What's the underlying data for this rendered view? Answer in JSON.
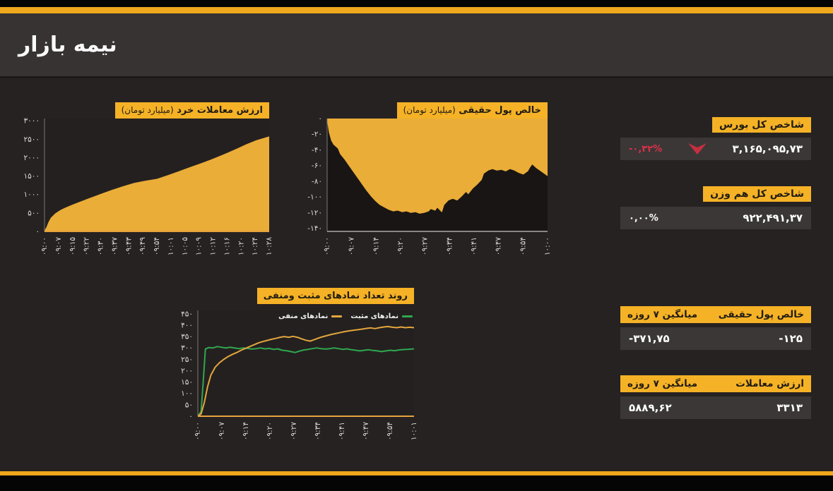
{
  "page": {
    "title": "نیمه بازار"
  },
  "colors": {
    "accent_stripe": "#F0A81C",
    "badge_yellow": "#F5B226",
    "chart_yellow": "#EAAD38",
    "positive_green": "#2FA84F",
    "negative_red": "#C62F3F",
    "card_bar_bg": "#3B3737",
    "header_bg": "#373332",
    "page_bg": "#262222"
  },
  "chart_data": [
    {
      "type": "area",
      "title": "ارزش معاملات خرد",
      "unit": "(میلیارد تومان)",
      "ylim": [
        0,
        3060
      ],
      "plot_bg": "#242020",
      "axis_color": "#E8A33D",
      "yticks": [
        {
          "v": 0,
          "label": "۰"
        },
        {
          "v": 500,
          "label": "۵۰۰"
        },
        {
          "v": 1000,
          "label": "۱۰۰۰"
        },
        {
          "v": 1500,
          "label": "۱۵۰۰"
        },
        {
          "v": 2000,
          "label": "۲۰۰۰"
        },
        {
          "v": 2500,
          "label": "۲۵۰۰"
        },
        {
          "v": 3000,
          "label": "۳۰۰۰"
        }
      ],
      "xticks": [
        "۰۹:۰۰",
        "۰۹:۰۷",
        "۰۹:۱۵",
        "۰۹:۲۲",
        "۰۹:۳۰",
        "۰۹:۳۷",
        "۰۹:۴۳",
        "۰۹:۴۹",
        "۰۹:۵۴",
        "۱۰:۰۱",
        "۱۰:۰۵",
        "۱۰:۰۹",
        "۱۰:۱۲",
        "۱۰:۱۶",
        "۱۰:۲۰",
        "۱۰:۲۴",
        "۱۰:۲۸"
      ],
      "series": [
        {
          "name": "ارزش معاملات خرد",
          "color": "#EAAD38",
          "width": 1.5,
          "fill": true,
          "points": [
            [
              0,
              0
            ],
            [
              0.01,
              100
            ],
            [
              0.02,
              250
            ],
            [
              0.03,
              360
            ],
            [
              0.05,
              480
            ],
            [
              0.07,
              560
            ],
            [
              0.09,
              620
            ],
            [
              0.12,
              700
            ],
            [
              0.15,
              770
            ],
            [
              0.18,
              840
            ],
            [
              0.21,
              910
            ],
            [
              0.25,
              1000
            ],
            [
              0.3,
              1110
            ],
            [
              0.35,
              1210
            ],
            [
              0.4,
              1300
            ],
            [
              0.45,
              1360
            ],
            [
              0.5,
              1410
            ],
            [
              0.55,
              1510
            ],
            [
              0.6,
              1620
            ],
            [
              0.65,
              1730
            ],
            [
              0.7,
              1840
            ],
            [
              0.74,
              1930
            ],
            [
              0.78,
              2030
            ],
            [
              0.82,
              2130
            ],
            [
              0.86,
              2240
            ],
            [
              0.9,
              2350
            ],
            [
              0.94,
              2450
            ],
            [
              1,
              2560
            ]
          ]
        }
      ]
    },
    {
      "type": "area",
      "title": "خالص پول حقیقی",
      "unit": "(میلیارد تومان)",
      "ylim": [
        -144,
        0
      ],
      "plot_bg": "#191515",
      "axis_color": "#8a8681",
      "yticks": [
        {
          "v": 0,
          "label": "۰"
        },
        {
          "v": -20,
          "label": "-۲۰"
        },
        {
          "v": -40,
          "label": "-۴۰"
        },
        {
          "v": -60,
          "label": "-۶۰"
        },
        {
          "v": -80,
          "label": "-۸۰"
        },
        {
          "v": -100,
          "label": "-۱۰۰"
        },
        {
          "v": -120,
          "label": "-۱۲۰"
        },
        {
          "v": -140,
          "label": "-۱۴۰"
        }
      ],
      "xticks": [
        "۰۹:۰۰",
        "۰۹:۰۷",
        "۰۹:۱۴",
        "۰۹:۲۰",
        "۰۹:۲۷",
        "۰۹:۳۴",
        "۰۹:۴۱",
        "۰۹:۴۷",
        "۰۹:۵۴",
        "۱۰:۰۰"
      ],
      "series": [
        {
          "name": "خالص پول حقیقی",
          "color": "#EAAD38",
          "width": 1,
          "fill": true,
          "points": [
            [
              0,
              0
            ],
            [
              0.01,
              -18
            ],
            [
              0.02,
              -28
            ],
            [
              0.03,
              -33
            ],
            [
              0.05,
              -38
            ],
            [
              0.06,
              -45
            ],
            [
              0.08,
              -52
            ],
            [
              0.1,
              -60
            ],
            [
              0.12,
              -68
            ],
            [
              0.14,
              -76
            ],
            [
              0.16,
              -84
            ],
            [
              0.18,
              -92
            ],
            [
              0.2,
              -99
            ],
            [
              0.22,
              -105
            ],
            [
              0.24,
              -110
            ],
            [
              0.26,
              -113
            ],
            [
              0.28,
              -116
            ],
            [
              0.3,
              -118
            ],
            [
              0.32,
              -117
            ],
            [
              0.34,
              -119
            ],
            [
              0.36,
              -118
            ],
            [
              0.38,
              -120
            ],
            [
              0.4,
              -119
            ],
            [
              0.42,
              -121
            ],
            [
              0.44,
              -120
            ],
            [
              0.46,
              -118
            ],
            [
              0.47,
              -115
            ],
            [
              0.49,
              -117
            ],
            [
              0.5,
              -113
            ],
            [
              0.52,
              -119
            ],
            [
              0.53,
              -110
            ],
            [
              0.55,
              -104
            ],
            [
              0.57,
              -102
            ],
            [
              0.59,
              -104
            ],
            [
              0.61,
              -99
            ],
            [
              0.63,
              -93
            ],
            [
              0.64,
              -96
            ],
            [
              0.66,
              -89
            ],
            [
              0.68,
              -84
            ],
            [
              0.7,
              -78
            ],
            [
              0.71,
              -70
            ],
            [
              0.73,
              -66
            ],
            [
              0.75,
              -64
            ],
            [
              0.77,
              -66
            ],
            [
              0.79,
              -65
            ],
            [
              0.81,
              -67
            ],
            [
              0.83,
              -64
            ],
            [
              0.85,
              -66
            ],
            [
              0.87,
              -69
            ],
            [
              0.89,
              -71
            ],
            [
              0.91,
              -67
            ],
            [
              0.92,
              -62
            ],
            [
              0.93,
              -58
            ],
            [
              0.95,
              -63
            ],
            [
              0.97,
              -67
            ],
            [
              0.99,
              -71
            ],
            [
              1,
              -73
            ]
          ]
        }
      ]
    },
    {
      "type": "line",
      "title": "روند تعداد نمادهای مثبت ومنفی",
      "unit": "",
      "ylim": [
        0,
        465
      ],
      "plot_bg": "#242020",
      "axis_color": "#E8A33D",
      "legend_position": "top-right",
      "yticks": [
        {
          "v": 0,
          "label": "۰"
        },
        {
          "v": 50,
          "label": "۵۰"
        },
        {
          "v": 100,
          "label": "۱۰۰"
        },
        {
          "v": 150,
          "label": "۱۵۰"
        },
        {
          "v": 200,
          "label": "۲۰۰"
        },
        {
          "v": 250,
          "label": "۲۵۰"
        },
        {
          "v": 300,
          "label": "۳۰۰"
        },
        {
          "v": 350,
          "label": "۳۵۰"
        },
        {
          "v": 400,
          "label": "۴۰۰"
        },
        {
          "v": 450,
          "label": "۴۵۰"
        }
      ],
      "xticks": [
        "۰۹:۰۰",
        "۰۹:۰۷",
        "۰۹:۱۴",
        "۰۹:۲۰",
        "۰۹:۲۷",
        "۰۹:۳۴",
        "۰۹:۴۱",
        "۰۹:۴۷",
        "۰۹:۵۴",
        "۱۰:۰۱"
      ],
      "series": [
        {
          "name": "نمادهای مثبت",
          "color": "#2FA84F",
          "width": 2,
          "points": [
            [
              0,
              0
            ],
            [
              0.015,
              20
            ],
            [
              0.025,
              150
            ],
            [
              0.035,
              295
            ],
            [
              0.05,
              302
            ],
            [
              0.07,
              300
            ],
            [
              0.09,
              306
            ],
            [
              0.11,
              303
            ],
            [
              0.13,
              300
            ],
            [
              0.15,
              303
            ],
            [
              0.17,
              300
            ],
            [
              0.19,
              297
            ],
            [
              0.21,
              300
            ],
            [
              0.23,
              298
            ],
            [
              0.25,
              295
            ],
            [
              0.27,
              297
            ],
            [
              0.29,
              300
            ],
            [
              0.31,
              296
            ],
            [
              0.33,
              298
            ],
            [
              0.35,
              294
            ],
            [
              0.37,
              296
            ],
            [
              0.39,
              290
            ],
            [
              0.41,
              288
            ],
            [
              0.43,
              284
            ],
            [
              0.45,
              280
            ],
            [
              0.47,
              286
            ],
            [
              0.49,
              291
            ],
            [
              0.51,
              294
            ],
            [
              0.53,
              297
            ],
            [
              0.55,
              300
            ],
            [
              0.57,
              297
            ],
            [
              0.59,
              295
            ],
            [
              0.61,
              297
            ],
            [
              0.63,
              300
            ],
            [
              0.65,
              297
            ],
            [
              0.67,
              294
            ],
            [
              0.69,
              296
            ],
            [
              0.71,
              292
            ],
            [
              0.73,
              290
            ],
            [
              0.75,
              287
            ],
            [
              0.77,
              290
            ],
            [
              0.79,
              292
            ],
            [
              0.81,
              289
            ],
            [
              0.83,
              287
            ],
            [
              0.85,
              284
            ],
            [
              0.87,
              287
            ],
            [
              0.89,
              290
            ],
            [
              0.91,
              288
            ],
            [
              0.93,
              291
            ],
            [
              0.95,
              293
            ],
            [
              0.97,
              294
            ],
            [
              1,
              296
            ]
          ]
        },
        {
          "name": "نمادهای منفی",
          "color": "#E3A63C",
          "width": 2,
          "points": [
            [
              0,
              0
            ],
            [
              0.015,
              10
            ],
            [
              0.03,
              60
            ],
            [
              0.045,
              130
            ],
            [
              0.06,
              180
            ],
            [
              0.08,
              215
            ],
            [
              0.1,
              235
            ],
            [
              0.12,
              250
            ],
            [
              0.14,
              262
            ],
            [
              0.16,
              272
            ],
            [
              0.18,
              280
            ],
            [
              0.2,
              290
            ],
            [
              0.22,
              298
            ],
            [
              0.24,
              306
            ],
            [
              0.26,
              314
            ],
            [
              0.28,
              322
            ],
            [
              0.3,
              328
            ],
            [
              0.32,
              333
            ],
            [
              0.34,
              338
            ],
            [
              0.36,
              342
            ],
            [
              0.38,
              347
            ],
            [
              0.4,
              350
            ],
            [
              0.42,
              347
            ],
            [
              0.44,
              351
            ],
            [
              0.46,
              347
            ],
            [
              0.48,
              340
            ],
            [
              0.5,
              334
            ],
            [
              0.52,
              330
            ],
            [
              0.54,
              337
            ],
            [
              0.56,
              344
            ],
            [
              0.58,
              350
            ],
            [
              0.6,
              355
            ],
            [
              0.62,
              360
            ],
            [
              0.64,
              364
            ],
            [
              0.66,
              368
            ],
            [
              0.68,
              372
            ],
            [
              0.7,
              375
            ],
            [
              0.72,
              378
            ],
            [
              0.74,
              380
            ],
            [
              0.76,
              383
            ],
            [
              0.78,
              386
            ],
            [
              0.8,
              388
            ],
            [
              0.82,
              385
            ],
            [
              0.84,
              389
            ],
            [
              0.86,
              392
            ],
            [
              0.88,
              394
            ],
            [
              0.9,
              391
            ],
            [
              0.92,
              389
            ],
            [
              0.94,
              392
            ],
            [
              0.96,
              389
            ],
            [
              0.98,
              391
            ],
            [
              1,
              389
            ]
          ]
        }
      ]
    }
  ],
  "cards": [
    {
      "title": "شاخص کل بورس",
      "value": "۳,۱۶۵,۰۹۵,۷۳",
      "change": "-۰,۳۲%",
      "direction": "down"
    },
    {
      "title": "شاخص کل هم وزن",
      "value": "۹۲۲,۴۹۱,۳۷",
      "change": "۰,۰۰%",
      "direction": "flat"
    },
    {
      "title": "خالص پول حقیقی",
      "subtitle": "میانگین ۷ روزه",
      "value": "-۱۲۵",
      "avg": "-۳۷۱,۷۵"
    },
    {
      "title": "ارزش معاملات",
      "subtitle": "میانگین ۷ روزه",
      "value": "۳۳۱۳",
      "avg": "۵۸۸۹,۶۲"
    }
  ]
}
